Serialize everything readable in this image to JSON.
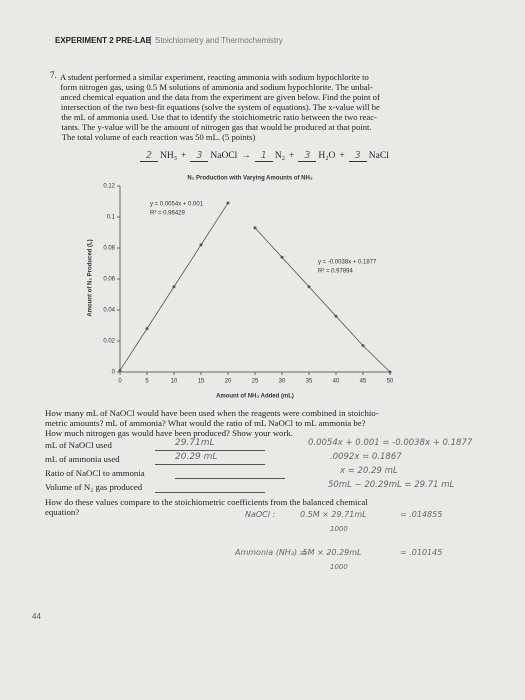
{
  "header": {
    "title": "EXPERIMENT 2 PRE-LAB",
    "subtitle": "Stoichiometry and Thermochemistry"
  },
  "question": {
    "number": "7.",
    "lines": [
      "A student performed a similar experiment, reacting ammonia with sodium hypochlorite to",
      "form nitrogen gas, using 0.5 M solutions of ammonia and sodium hypochlorite. The unbal-",
      "anced chemical equation and the data from the experiment are given below. Find the point of",
      "intersection of the two best-fit equations (solve the system of equations). The x-value will be",
      "the mL of ammonia used. Use that to identify the stoichiometric ratio between the two reac-",
      "tants. The y-value will be the amount of nitrogen gas that would be produced at that point.",
      "The total volume of each reaction was 50 mL. (5 points)"
    ]
  },
  "equation": [
    {
      "coef": "2",
      "formula": "NH₃"
    },
    {
      "op": "+"
    },
    {
      "coef": "3",
      "formula": "NaOCl"
    },
    {
      "op": "→"
    },
    {
      "coef": "1",
      "formula": "N₂"
    },
    {
      "op": "+"
    },
    {
      "coef": "3",
      "formula": "H₂O"
    },
    {
      "op": "+"
    },
    {
      "coef": "3",
      "formula": "NaCl"
    }
  ],
  "chart_data": {
    "type": "scatter",
    "title": "N₂ Production with Varying Amounts of NH₃",
    "x_label": "Amount of NH₃ Added (mL)",
    "y_label": "Amount of N₂ Produced (L)",
    "xlim": [
      0,
      50
    ],
    "xticks": [
      0,
      5,
      10,
      15,
      20,
      25,
      30,
      35,
      40,
      45,
      50
    ],
    "ylim": [
      0,
      0.12
    ],
    "yticks": [
      0,
      0.02,
      0.04,
      0.06,
      0.08,
      0.1,
      0.12
    ],
    "series": [
      {
        "color": "#555555",
        "x": [
          0,
          5,
          10,
          15,
          20
        ],
        "values": [
          0.001,
          0.028,
          0.055,
          0.082,
          0.109
        ]
      },
      {
        "color": "#555555",
        "x": [
          25,
          30,
          35,
          40,
          45,
          50
        ],
        "values": [
          0.093,
          0.074,
          0.055,
          0.036,
          0.017,
          0
        ]
      }
    ],
    "annotations": [
      "y = 0.0054x + 0.001",
      "R² = 0.96429",
      "y = -0.0038x + 0.1877",
      "R² = 0.97894"
    ]
  },
  "prompt": [
    "How many mL of NaOCl would have been used when the reagents were combined in stoichio-",
    "metric amounts? mL of ammonia? What would the ratio of mL NaOCl to mL ammonia be?",
    "How much nitrogen gas would have been produced? Show your work."
  ],
  "answers": [
    {
      "label": "mL of NaOCl used",
      "value": "29.71mL"
    },
    {
      "label": "mL of ammonia used",
      "value": "20.29 mL"
    },
    {
      "label": "Ratio of NaOCl to ammonia",
      "value": ""
    },
    {
      "label": "Volume of N₂ gas produced",
      "value": ""
    }
  ],
  "followup": [
    "How do these values compare to the stoichiometric coefficients from the balanced chemical",
    "equation?"
  ],
  "work": [
    "0.0054x + 0.001 = -0.0038x + 0.1877",
    ".0092x = 0.1867",
    "x = 20.29 mL",
    "50mL − 20.29mL = 29.71 mL"
  ],
  "work2": [
    {
      "lhs": "NaOCl :",
      "num": "0.5M × 29.71mL",
      "den": "1000",
      "res": "= .014855"
    },
    {
      "lhs": "Ammonia (NH₃) =",
      "num": ".5M × 20.29mL",
      "den": "1000",
      "res": "= .010145"
    }
  ],
  "page_number": "44"
}
